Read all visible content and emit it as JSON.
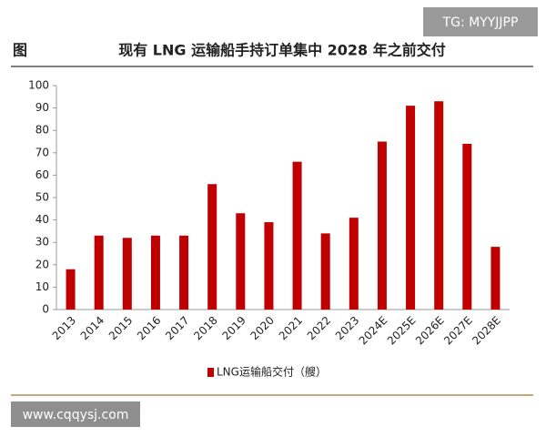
{
  "chart_data": {
    "type": "bar",
    "figure_label": "图",
    "title": "现有 LNG 运输船手持订单集中 2028 年之前交付",
    "categories": [
      "2013",
      "2014",
      "2015",
      "2016",
      "2017",
      "2018",
      "2019",
      "2020",
      "2021",
      "2022",
      "2023",
      "2024E",
      "2025E",
      "2026E",
      "2027E",
      "2028E"
    ],
    "series": [
      {
        "name": "LNG运输船交付（艘）",
        "color": "#c00000",
        "values": [
          18,
          33,
          32,
          33,
          33,
          56,
          43,
          39,
          66,
          34,
          41,
          75,
          91,
          93,
          74,
          28
        ]
      }
    ],
    "ylim": [
      0,
      100
    ],
    "yticks": [
      0,
      10,
      20,
      30,
      40,
      50,
      60,
      70,
      80,
      90,
      100
    ],
    "grid": false,
    "legend": "bottom"
  },
  "watermarks": [
    "TG: MYYJJPP",
    "www.cqqysj.com"
  ]
}
